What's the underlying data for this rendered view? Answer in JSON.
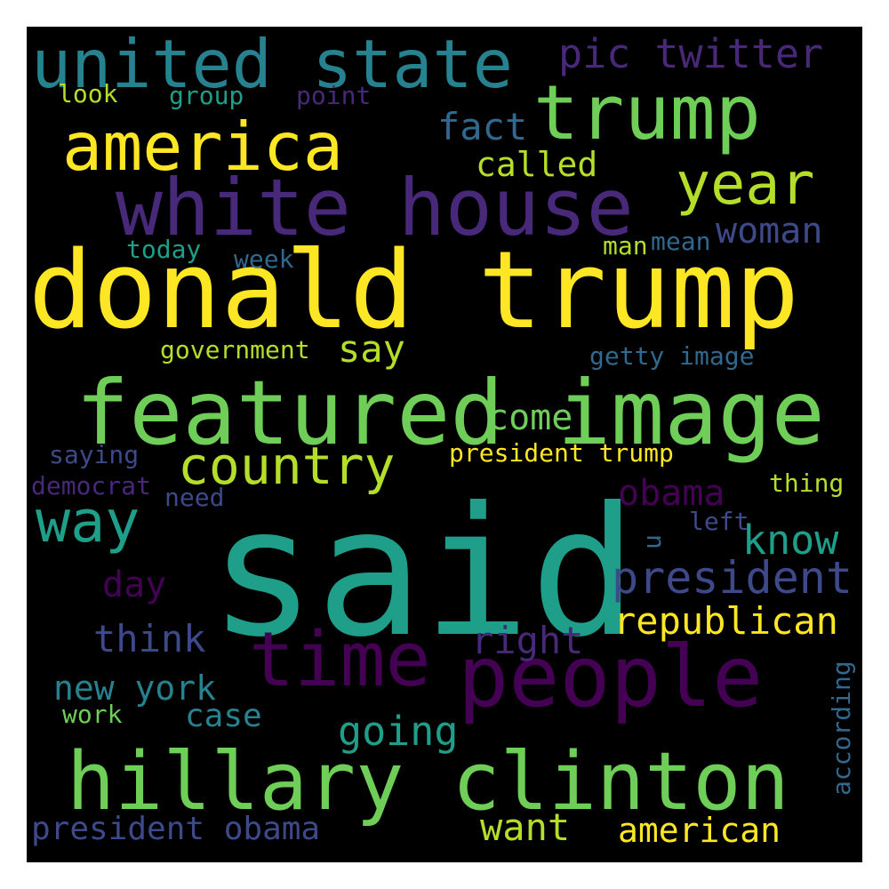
{
  "palette": {
    "background": "#000000",
    "dark_purple": "#440154",
    "purple": "#482878",
    "indigo": "#3e4989",
    "blue": "#31688e",
    "teal": "#26828e",
    "sea": "#1f9e89",
    "green": "#35b779",
    "light_green": "#6ece58",
    "yellow_green": "#b5de2b",
    "yellow": "#fde725"
  },
  "words": {
    "said": "said",
    "donald_trump": "donald trump",
    "featured_image": "featured image",
    "hillary_clinton": "hillary clinton",
    "white_house": "white house",
    "united_state": "united state",
    "trump": "trump",
    "america": "america",
    "people": "people",
    "time": "time",
    "country": "country",
    "year": "year",
    "way": "way",
    "president": "president",
    "republican": "republican",
    "pic_twitter": "pic twitter",
    "president_obama": "president obama",
    "american": "american",
    "new_york": "new york",
    "woman": "woman",
    "fact": "fact",
    "called": "called",
    "know": "know",
    "obama": "obama",
    "going": "going",
    "think": "think",
    "right": "right",
    "want": "want",
    "come": "come",
    "say": "say",
    "case": "case",
    "day": "day",
    "president_trump": "president trump",
    "getty_image": "getty image",
    "government": "government",
    "look": "look",
    "group": "group",
    "point": "point",
    "today": "today",
    "week": "week",
    "man": "man",
    "mean": "mean",
    "saying": "saying",
    "democrat": "democrat",
    "need": "need",
    "thing": "thing",
    "left": "left",
    "u": "u",
    "work": "work",
    "according": "according"
  }
}
